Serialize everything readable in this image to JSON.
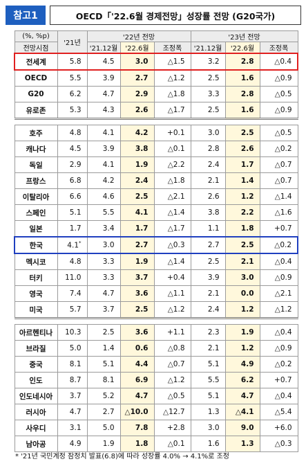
{
  "header": {
    "badge": "참고1",
    "title": "OECD「'22.6월 경제전망」성장률 전망 (G20국가)"
  },
  "table": {
    "unit": "(%, %p)",
    "row_header": "전망시점",
    "base_year": "'21년",
    "periods": [
      {
        "title": "'22년 전망",
        "columns": [
          "'21.12월",
          "'22.6월",
          "조정폭"
        ]
      },
      {
        "title": "'23년 전망",
        "columns": [
          "'21.12월",
          "'22.6월",
          "조정폭"
        ]
      }
    ],
    "groups": [
      {
        "rows": [
          {
            "name": "전세계",
            "cells": [
              "5.8",
              "4.5",
              "3.0",
              "△1.5",
              "3.2",
              "2.8",
              "△0.4"
            ]
          },
          {
            "name": "OECD",
            "cells": [
              "5.5",
              "3.9",
              "2.7",
              "△1.2",
              "2.5",
              "1.6",
              "△0.9"
            ]
          },
          {
            "name": "G20",
            "cells": [
              "6.2",
              "4.7",
              "2.9",
              "△1.8",
              "3.3",
              "2.8",
              "△0.5"
            ]
          },
          {
            "name": "유로존",
            "cells": [
              "5.3",
              "4.3",
              "2.6",
              "△1.7",
              "2.5",
              "1.6",
              "△0.9"
            ]
          }
        ]
      },
      {
        "rows": [
          {
            "name": "호주",
            "cells": [
              "4.8",
              "4.1",
              "4.2",
              "+0.1",
              "3.0",
              "2.5",
              "△0.5"
            ]
          },
          {
            "name": "캐나다",
            "cells": [
              "4.5",
              "3.9",
              "3.8",
              "△0.1",
              "2.8",
              "2.6",
              "△0.2"
            ]
          },
          {
            "name": "독일",
            "cells": [
              "2.9",
              "4.1",
              "1.9",
              "△2.2",
              "2.4",
              "1.7",
              "△0.7"
            ]
          },
          {
            "name": "프랑스",
            "cells": [
              "6.8",
              "4.2",
              "2.4",
              "△1.8",
              "2.1",
              "1.4",
              "△0.7"
            ]
          },
          {
            "name": "이탈리아",
            "cells": [
              "6.6",
              "4.6",
              "2.5",
              "△2.1",
              "2.6",
              "1.2",
              "△1.4"
            ]
          },
          {
            "name": "스페인",
            "cells": [
              "5.1",
              "5.5",
              "4.1",
              "△1.4",
              "3.8",
              "2.2",
              "△1.6"
            ]
          },
          {
            "name": "일본",
            "cells": [
              "1.7",
              "3.4",
              "1.7",
              "△1.7",
              "1.1",
              "1.8",
              "+0.7"
            ]
          },
          {
            "name": "한국",
            "cells": [
              "4.1",
              "3.0",
              "2.7",
              "△0.3",
              "2.7",
              "2.5",
              "△0.2"
            ],
            "note": "*"
          },
          {
            "name": "멕시코",
            "cells": [
              "4.8",
              "3.3",
              "1.9",
              "△1.4",
              "2.5",
              "2.1",
              "△0.4"
            ]
          },
          {
            "name": "터키",
            "cells": [
              "11.0",
              "3.3",
              "3.7",
              "+0.4",
              "3.9",
              "3.0",
              "△0.9"
            ]
          },
          {
            "name": "영국",
            "cells": [
              "7.4",
              "4.7",
              "3.6",
              "△1.1",
              "2.1",
              "0.0",
              "△2.1"
            ]
          },
          {
            "name": "미국",
            "cells": [
              "5.7",
              "3.7",
              "2.5",
              "△1.2",
              "2.4",
              "1.2",
              "△1.2"
            ]
          }
        ]
      },
      {
        "rows": [
          {
            "name": "아르헨티나",
            "cells": [
              "10.3",
              "2.5",
              "3.6",
              "+1.1",
              "2.3",
              "1.9",
              "△0.4"
            ]
          },
          {
            "name": "브라질",
            "cells": [
              "5.0",
              "1.4",
              "0.6",
              "△0.8",
              "2.1",
              "1.2",
              "△0.9"
            ]
          },
          {
            "name": "중국",
            "cells": [
              "8.1",
              "5.1",
              "4.4",
              "△0.7",
              "5.1",
              "4.9",
              "△0.2"
            ]
          },
          {
            "name": "인도",
            "cells": [
              "8.7",
              "8.1",
              "6.9",
              "△1.2",
              "5.5",
              "6.2",
              "+0.7"
            ]
          },
          {
            "name": "인도네시아",
            "cells": [
              "3.7",
              "5.2",
              "4.7",
              "△0.5",
              "5.1",
              "4.7",
              "△0.4"
            ]
          },
          {
            "name": "러시아",
            "cells": [
              "4.7",
              "2.7",
              "△10.0",
              "△12.7",
              "1.3",
              "△4.1",
              "△5.4"
            ]
          },
          {
            "name": "사우디",
            "cells": [
              "3.1",
              "5.0",
              "7.8",
              "+2.8",
              "3.0",
              "9.0",
              "+6.0"
            ]
          },
          {
            "name": "남아공",
            "cells": [
              "4.9",
              "1.9",
              "1.8",
              "△0.1",
              "1.6",
              "1.3",
              "△0.3"
            ]
          }
        ]
      }
    ]
  },
  "footnote": {
    "mark": "*",
    "text": "'21년 국민계정 잠정치 발표(6.8)에 따라 성장률 4.0% → 4.1%로 조정"
  }
}
